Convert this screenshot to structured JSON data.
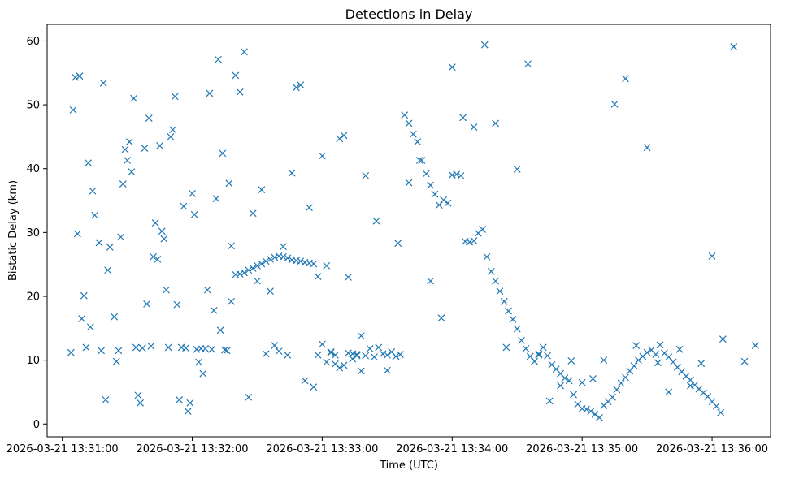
{
  "chart_data": {
    "type": "scatter",
    "title": "Detections in Delay",
    "xlabel": "Time (UTC)",
    "ylabel": "Bistatic Delay (km)",
    "x_unit": "seconds after 2026-03-21 13:31:00",
    "xlim": [
      -7,
      327
    ],
    "ylim": [
      -2,
      62.6
    ],
    "x_ticks": [
      {
        "value": 0,
        "label": "2026-03-21 13:31:00"
      },
      {
        "value": 60,
        "label": "2026-03-21 13:32:00"
      },
      {
        "value": 120,
        "label": "2026-03-21 13:33:00"
      },
      {
        "value": 180,
        "label": "2026-03-21 13:34:00"
      },
      {
        "value": 240,
        "label": "2026-03-21 13:35:00"
      },
      {
        "value": 300,
        "label": "2026-03-21 13:36:00"
      }
    ],
    "y_ticks": [
      0,
      10,
      20,
      30,
      40,
      50,
      60
    ],
    "grid": false,
    "marker": "x",
    "color": "#1f77b4",
    "series": [
      {
        "x": [
          4,
          5,
          6,
          7,
          8,
          9,
          10,
          11,
          12,
          13,
          14,
          15,
          17,
          18,
          19,
          20,
          21,
          22,
          24,
          25,
          26,
          27,
          28,
          29,
          30,
          31,
          32,
          33,
          34,
          35,
          36,
          37,
          38,
          39,
          40,
          41,
          42,
          43,
          44,
          45,
          46,
          47,
          48,
          49,
          50,
          51,
          52,
          53,
          54,
          55,
          56,
          57,
          58,
          59,
          60,
          61,
          62,
          63,
          64,
          65,
          66,
          67,
          68,
          69,
          70,
          71,
          72,
          73,
          74,
          75,
          76,
          77,
          78,
          80,
          82,
          84,
          86,
          88,
          90,
          92,
          94,
          96,
          98,
          100,
          102,
          104,
          106,
          108,
          110,
          112,
          114,
          116,
          118,
          120,
          122,
          124,
          126,
          128,
          130,
          132,
          134,
          136,
          138,
          140,
          145,
          150,
          155,
          160,
          165,
          170,
          175,
          180,
          185,
          190,
          195,
          200,
          205,
          210,
          215,
          220,
          225,
          230,
          235,
          240,
          245,
          250,
          255,
          260,
          265,
          270,
          275,
          280,
          285,
          290,
          295,
          300,
          305,
          310,
          315,
          320
        ],
        "y": [
          11.2,
          49.2,
          54.3,
          29.8,
          54.5,
          16.5,
          20.1,
          12.0,
          40.9,
          15.2,
          36.5,
          32.7,
          28.4,
          11.5,
          53.4,
          3.8,
          24.1,
          27.7,
          16.8,
          9.8,
          11.5,
          29.3,
          37.6,
          43.0,
          41.3,
          44.2,
          39.5,
          51.0,
          12.0,
          4.5,
          3.3,
          11.9,
          43.2,
          18.8,
          47.9,
          12.2,
          26.2,
          31.5,
          25.8,
          43.6,
          30.2,
          29.0,
          21.0,
          12.0,
          45.0,
          46.1,
          51.3,
          18.7,
          3.8,
          12.0,
          34.1,
          11.9,
          2.0,
          3.3,
          36.1,
          32.8,
          11.7,
          9.7,
          11.8,
          7.9,
          11.8,
          21.0,
          51.8,
          11.7,
          17.8,
          35.3,
          57.1,
          14.7,
          42.4,
          11.6,
          11.5,
          37.7,
          19.2,
          54.6,
          52.0,
          58.3,
          4.2,
          33.0,
          22.4,
          36.7,
          11.0,
          20.8,
          12.3,
          11.4,
          27.8,
          10.8,
          39.3,
          52.7,
          53.1,
          6.8,
          33.9,
          5.8,
          23.1,
          42.0,
          24.8,
          11.2,
          10.8,
          44.7,
          45.2,
          23.0,
          11.0,
          10.7,
          13.8,
          38.9,
          31.8,
          8.4,
          28.3,
          37.8,
          41.3,
          22.4,
          16.6,
          55.9,
          48.0,
          46.5,
          59.4,
          47.1,
          12.0,
          39.9,
          56.4,
          10.8,
          3.6,
          6.0,
          9.9,
          6.5,
          7.1,
          10.0,
          50.1,
          54.1,
          12.3,
          43.3,
          9.6,
          5.0,
          11.7,
          6.0,
          9.5,
          26.3,
          13.3,
          59.1,
          9.8,
          12.3
        ]
      },
      {
        "x": [
          78,
          80,
          82,
          84,
          86,
          88,
          90,
          92,
          94,
          96,
          98,
          100,
          102,
          104,
          106,
          108,
          110,
          112,
          114,
          116,
          118,
          120,
          122,
          124,
          126,
          128,
          130,
          132,
          134,
          136,
          138,
          140,
          142,
          144,
          146,
          148,
          150,
          152,
          154,
          156,
          158,
          160,
          162,
          164,
          166,
          168,
          170,
          172,
          174,
          176,
          178,
          180,
          182,
          184,
          186,
          188,
          190,
          192,
          194,
          196,
          198,
          200,
          202,
          204,
          206,
          208,
          210,
          212,
          214,
          216,
          218,
          220,
          222,
          224,
          226,
          228,
          230,
          232,
          234,
          236,
          238,
          240,
          242,
          244,
          246,
          248,
          250,
          252,
          254,
          256,
          258,
          260,
          262,
          264,
          266,
          268,
          270,
          272,
          274,
          276,
          278,
          280,
          282,
          284,
          286,
          288,
          290,
          292,
          294,
          296,
          298,
          300,
          302,
          304
        ],
        "y": [
          27.9,
          23.4,
          23.5,
          23.7,
          24.1,
          24.4,
          24.8,
          25.1,
          25.5,
          25.8,
          26.1,
          26.3,
          26.2,
          26.0,
          25.7,
          25.6,
          25.5,
          25.3,
          25.2,
          25.1,
          10.8,
          12.5,
          9.7,
          11.3,
          9.4,
          8.8,
          9.2,
          11.1,
          10.2,
          10.9,
          8.3,
          10.7,
          11.8,
          10.5,
          12.0,
          11.0,
          10.8,
          11.3,
          10.6,
          10.9,
          48.4,
          47.1,
          45.4,
          44.2,
          41.3,
          39.2,
          37.4,
          36.0,
          34.3,
          35.1,
          34.6,
          39.0,
          39.1,
          38.9,
          28.6,
          28.5,
          28.7,
          29.9,
          30.5,
          26.2,
          23.9,
          22.4,
          20.8,
          19.2,
          17.7,
          16.4,
          14.9,
          13.1,
          11.8,
          10.6,
          9.8,
          11.0,
          12.0,
          10.7,
          9.3,
          8.6,
          7.9,
          7.2,
          6.8,
          4.6,
          3.1,
          2.4,
          2.3,
          2.0,
          1.5,
          1.0,
          2.9,
          3.5,
          4.2,
          5.4,
          6.4,
          7.3,
          8.3,
          9.1,
          10.0,
          10.6,
          11.2,
          11.6,
          10.9,
          12.4,
          11.1,
          10.5,
          9.7,
          8.9,
          8.2,
          7.5,
          6.9,
          6.1,
          5.5,
          4.9,
          4.3,
          3.5,
          2.8,
          1.8
        ]
      }
    ]
  }
}
